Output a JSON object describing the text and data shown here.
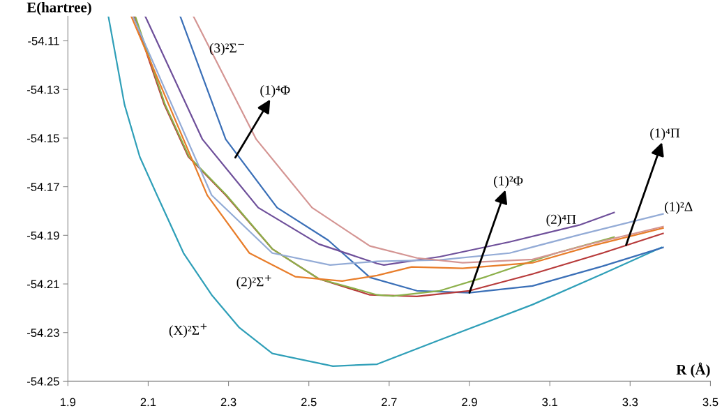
{
  "chart_data": {
    "type": "line",
    "xlabel": "R (Å)",
    "ylabel": "E(hartree)",
    "xlim": [
      1.9,
      3.5
    ],
    "xticks": [
      1.9,
      2.1,
      2.3,
      2.5,
      2.7,
      2.9,
      3.1,
      3.3,
      3.5
    ],
    "ylim": [
      -54.25,
      -54.1
    ],
    "yticks": [
      -54.25,
      -54.23,
      -54.21,
      -54.19,
      -54.17,
      -54.15,
      -54.13,
      -54.11
    ],
    "grid": false,
    "legend": false,
    "marker": "none",
    "line_style": "solid",
    "series": [
      {
        "color": "#2f9fb8",
        "x": [
          2.001,
          2.041,
          2.079,
          2.122,
          2.188,
          2.258,
          2.327,
          2.409,
          2.56,
          2.67,
          2.826,
          3.057,
          3.231,
          3.378
        ],
        "values": [
          -54.1,
          -54.1362,
          -54.1577,
          -54.1735,
          -54.1973,
          -54.2145,
          -54.228,
          -54.2386,
          -54.2438,
          -54.243,
          -54.233,
          -54.2185,
          -54.2059,
          -54.195
        ]
      },
      {
        "color": "#3a6fb7",
        "x": [
          2.18,
          2.293,
          2.421,
          2.548,
          2.652,
          2.769,
          2.9,
          3.057,
          3.231,
          3.382
        ],
        "values": [
          -54.1,
          -54.1505,
          -54.1786,
          -54.192,
          -54.2073,
          -54.2128,
          -54.2136,
          -54.2108,
          -54.2027,
          -54.195
        ]
      },
      {
        "color": "#b73a3a",
        "x": [
          2.065,
          2.14,
          2.2,
          2.293,
          2.409,
          2.525,
          2.652,
          2.769,
          2.9,
          3.057,
          3.231,
          3.382
        ],
        "values": [
          -54.1,
          -54.1362,
          -54.1577,
          -54.1735,
          -54.1956,
          -54.2079,
          -54.2145,
          -54.2151,
          -54.2128,
          -54.2059,
          -54.1973,
          -54.1892
        ]
      },
      {
        "color": "#8cb04a",
        "x": [
          2.068,
          2.142,
          2.202,
          2.295,
          2.409,
          2.525,
          2.67,
          2.71,
          2.826,
          2.942,
          3.116,
          3.26
        ],
        "values": [
          -54.1,
          -54.1362,
          -54.1577,
          -54.1735,
          -54.1956,
          -54.2079,
          -54.2145,
          -54.215,
          -54.2128,
          -54.207,
          -54.1973,
          -54.1907
        ]
      },
      {
        "color": "#6e4f9a",
        "x": [
          2.093,
          2.235,
          2.374,
          2.525,
          2.67,
          2.687,
          2.826,
          3.0,
          3.173,
          3.26
        ],
        "values": [
          -54.1,
          -54.1505,
          -54.1786,
          -54.1936,
          -54.2016,
          -54.2022,
          -54.1988,
          -54.1927,
          -54.1858,
          -54.1806
        ]
      },
      {
        "color": "#93abd6",
        "x": [
          2.062,
          2.258,
          2.409,
          2.553,
          2.67,
          2.826,
          3.0,
          3.173,
          3.382
        ],
        "values": [
          -54.1,
          -54.1735,
          -54.1973,
          -54.2022,
          -54.2007,
          -54.2001,
          -54.1973,
          -54.1898,
          -54.1812
        ]
      },
      {
        "color": "#e87d2a",
        "x": [
          2.058,
          2.247,
          2.352,
          2.466,
          2.583,
          2.67,
          2.756,
          2.883,
          3.057,
          3.203,
          3.382
        ],
        "values": [
          -54.1,
          -54.1735,
          -54.1973,
          -54.207,
          -54.2088,
          -54.2065,
          -54.203,
          -54.2036,
          -54.2013,
          -54.1944,
          -54.187
        ]
      },
      {
        "color": "#d49593",
        "x": [
          2.213,
          2.369,
          2.508,
          2.652,
          2.769,
          2.883,
          3.057,
          3.203,
          3.382
        ],
        "values": [
          -54.1,
          -54.1505,
          -54.1786,
          -54.1944,
          -54.1993,
          -54.2013,
          -54.1999,
          -54.1935,
          -54.1864
        ]
      }
    ],
    "annotations": [
      "(3)²Σ$^{−}$",
      {
        "text": "(1)⁴Φ",
        "x": 2.317,
        "y": -54.158
      },
      "(2)²Σ$^{+}$",
      "(X)²Σ$^{+}$",
      {
        "text": "(1)²Φ",
        "x": 2.9,
        "y": -54.2136
      },
      "(2)⁴Π",
      {
        "text": "(1)⁴Π",
        "x": 3.29,
        "y": -54.194
      },
      {
        "text": "(1)²Δ",
        "x": 3.385,
        "y": -54.1812
      }
    ]
  }
}
